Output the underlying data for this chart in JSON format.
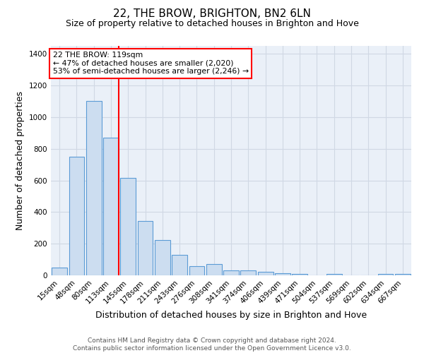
{
  "title": "22, THE BROW, BRIGHTON, BN2 6LN",
  "subtitle": "Size of property relative to detached houses in Brighton and Hove",
  "xlabel": "Distribution of detached houses by size in Brighton and Hove",
  "ylabel": "Number of detached properties",
  "footer_line1": "Contains HM Land Registry data © Crown copyright and database right 2024.",
  "footer_line2": "Contains public sector information licensed under the Open Government Licence v3.0.",
  "categories": [
    "15sqm",
    "48sqm",
    "80sqm",
    "113sqm",
    "145sqm",
    "178sqm",
    "211sqm",
    "243sqm",
    "276sqm",
    "308sqm",
    "341sqm",
    "374sqm",
    "406sqm",
    "439sqm",
    "471sqm",
    "504sqm",
    "537sqm",
    "569sqm",
    "602sqm",
    "634sqm",
    "667sqm"
  ],
  "values": [
    47,
    750,
    1100,
    870,
    615,
    345,
    225,
    130,
    60,
    70,
    32,
    30,
    22,
    15,
    10,
    0,
    10,
    0,
    0,
    10,
    10
  ],
  "bar_face_color": "#ccddf0",
  "bar_edge_color": "#5b9bd5",
  "grid_color": "#d0d8e4",
  "background_color": "#eaf0f8",
  "red_line_index": 3,
  "annotation_text": "22 THE BROW: 119sqm\n← 47% of detached houses are smaller (2,020)\n53% of semi-detached houses are larger (2,246) →",
  "annotation_box_color": "white",
  "annotation_box_edge_color": "red",
  "ylim": [
    0,
    1450
  ],
  "yticks": [
    0,
    200,
    400,
    600,
    800,
    1000,
    1200,
    1400
  ]
}
